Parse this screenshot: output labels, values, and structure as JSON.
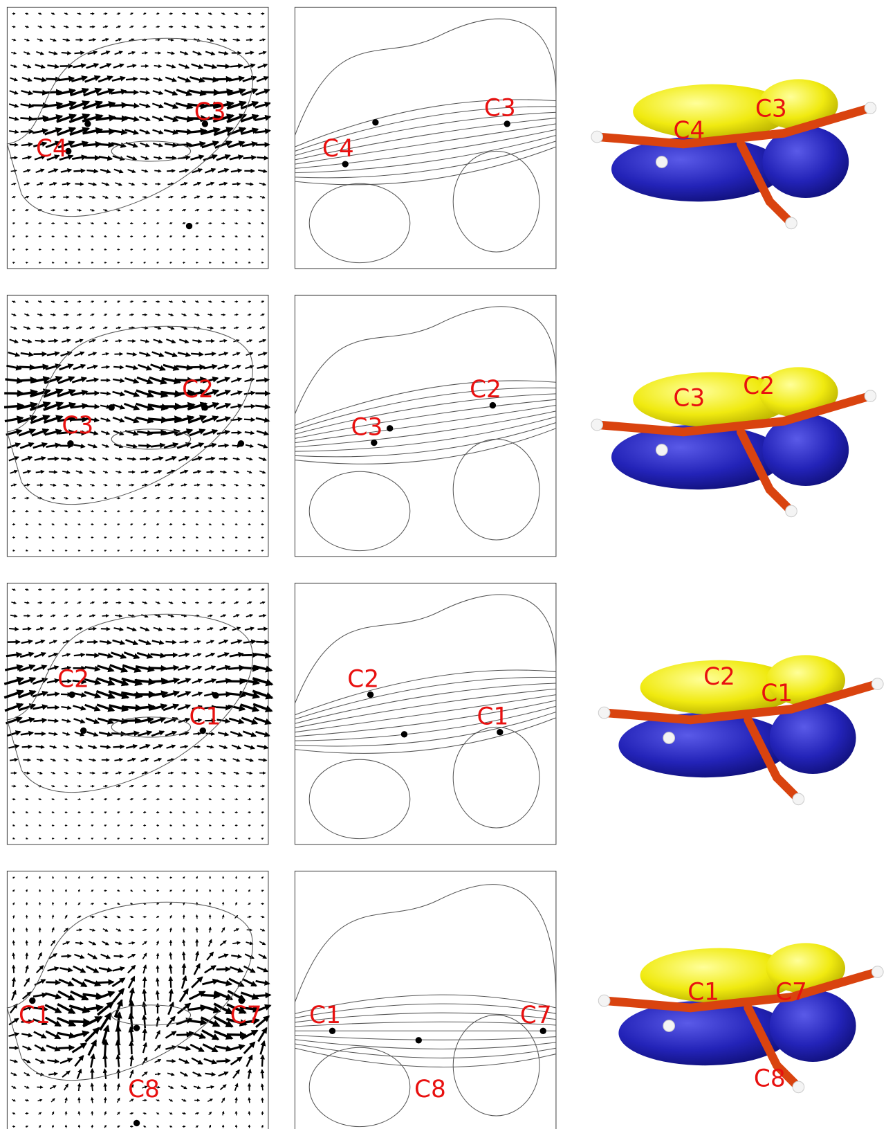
{
  "rows": [
    {
      "vector_labels": [
        "C3",
        "C4"
      ],
      "contour_labels": [
        "C3",
        "C4"
      ],
      "orbital_labels": [
        "C3",
        "C4"
      ]
    },
    {
      "vector_labels": [
        "C2",
        "C3"
      ],
      "contour_labels": [
        "C2",
        "C3"
      ],
      "orbital_labels": [
        "C2",
        "C3"
      ]
    },
    {
      "vector_labels": [
        "C2",
        "C1"
      ],
      "contour_labels": [
        "C2",
        "C1"
      ],
      "orbital_labels": [
        "C2",
        "C1"
      ]
    },
    {
      "vector_labels": [
        "C1",
        "C7",
        "C8"
      ],
      "contour_labels": [
        "C1",
        "C7",
        "C8"
      ],
      "orbital_labels": [
        "C1",
        "C7",
        "C8"
      ]
    }
  ]
}
